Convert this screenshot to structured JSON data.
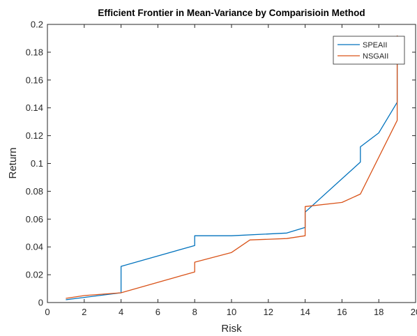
{
  "chart_data": {
    "type": "line",
    "title": "Efficient Frontier in Mean-Variance by Comparisioin Method",
    "xlabel": "Risk",
    "ylabel": "Return",
    "xlim": [
      0,
      20
    ],
    "ylim": [
      0,
      0.2
    ],
    "xticks": [
      "0",
      "2",
      "4",
      "6",
      "8",
      "10",
      "12",
      "14",
      "16",
      "18",
      "20"
    ],
    "yticks": [
      "0",
      "0.02",
      "0.04",
      "0.06",
      "0.08",
      "0.1",
      "0.12",
      "0.14",
      "0.16",
      "0.18",
      "0.2"
    ],
    "grid": false,
    "legend_position": "top-right",
    "series": [
      {
        "name": "SPEAII",
        "color": "#0072BD",
        "x": [
          1,
          4,
          4,
          8,
          8,
          10,
          13,
          14,
          14,
          17,
          17,
          18,
          19,
          19
        ],
        "y": [
          0.002,
          0.007,
          0.026,
          0.041,
          0.048,
          0.048,
          0.05,
          0.054,
          0.065,
          0.101,
          0.112,
          0.122,
          0.144,
          0.192
        ]
      },
      {
        "name": "NSGAII",
        "color": "#D95319",
        "x": [
          1,
          2,
          4,
          8,
          8,
          10,
          11,
          13,
          14,
          14,
          16,
          17,
          19,
          19
        ],
        "y": [
          0.003,
          0.005,
          0.007,
          0.022,
          0.029,
          0.036,
          0.045,
          0.046,
          0.048,
          0.069,
          0.072,
          0.078,
          0.131,
          0.192
        ]
      }
    ]
  }
}
